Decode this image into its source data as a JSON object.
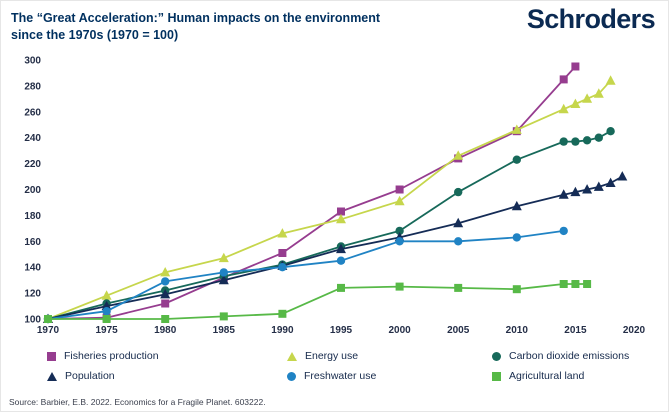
{
  "header": {
    "title_line1": "The “Great Acceleration:” Human impacts on the environment",
    "title_line2": "since the 1970s (1970 = 100)",
    "logo": "Schroders"
  },
  "colors": {
    "title_text": "#00305f",
    "axis_text": "#242e47",
    "background": "#ffffff"
  },
  "chart_data": {
    "type": "line",
    "title": "The “Great Acceleration:” Human impacts on the environment since the 1970s (1970 = 100)",
    "xlabel": "",
    "ylabel": "",
    "xlim": [
      1970,
      2020
    ],
    "ylim": [
      100,
      300
    ],
    "x_ticks": [
      1970,
      1975,
      1980,
      1985,
      1990,
      1995,
      2000,
      2005,
      2010,
      2015,
      2020
    ],
    "y_ticks": [
      100,
      120,
      140,
      160,
      180,
      200,
      220,
      240,
      260,
      280,
      300
    ],
    "grid": false,
    "legend_position": "bottom",
    "series": [
      {
        "name": "Fisheries production",
        "color": "#963d8f",
        "marker": "square",
        "x": [
          1970,
          1975,
          1980,
          1985,
          1990,
          1995,
          2000,
          2005,
          2010,
          2014,
          2015
        ],
        "y": [
          100,
          101,
          112,
          132,
          151,
          183,
          200,
          224,
          245,
          285,
          295
        ]
      },
      {
        "name": "Energy use",
        "color": "#c6d64c",
        "marker": "triangle",
        "x": [
          1970,
          1975,
          1980,
          1985,
          1990,
          1995,
          2000,
          2005,
          2010,
          2014,
          2015,
          2016,
          2017,
          2018
        ],
        "y": [
          100,
          118,
          136,
          147,
          166,
          177,
          191,
          226,
          246,
          262,
          266,
          270,
          274,
          284
        ]
      },
      {
        "name": "Carbon dioxide emissions",
        "color": "#17695a",
        "marker": "circle",
        "x": [
          1970,
          1975,
          1980,
          1985,
          1990,
          1995,
          2000,
          2005,
          2010,
          2014,
          2015,
          2016,
          2017,
          2018
        ],
        "y": [
          100,
          112,
          122,
          133,
          142,
          156,
          168,
          198,
          223,
          237,
          237,
          238,
          240,
          245
        ]
      },
      {
        "name": "Population",
        "color": "#152c56",
        "marker": "triangle",
        "x": [
          1970,
          1975,
          1980,
          1985,
          1990,
          1995,
          2000,
          2005,
          2010,
          2014,
          2015,
          2016,
          2017,
          2018,
          2019
        ],
        "y": [
          100,
          110,
          119,
          130,
          141,
          154,
          163,
          174,
          187,
          196,
          198,
          200,
          202,
          205,
          210
        ]
      },
      {
        "name": "Freshwater use",
        "color": "#2083c4",
        "marker": "circle",
        "x": [
          1970,
          1975,
          1980,
          1985,
          1990,
          1995,
          2000,
          2005,
          2010,
          2014
        ],
        "y": [
          100,
          106,
          129,
          136,
          140,
          145,
          160,
          160,
          163,
          168
        ]
      },
      {
        "name": "Agricultural land",
        "color": "#57b947",
        "marker": "square",
        "x": [
          1970,
          1975,
          1980,
          1985,
          1990,
          1995,
          2000,
          2005,
          2010,
          2014,
          2015,
          2016
        ],
        "y": [
          100,
          100,
          100,
          102,
          104,
          124,
          125,
          124,
          123,
          127,
          127,
          127
        ]
      }
    ]
  },
  "source": "Source: Barbier, E.B. 2022. Economics for a Fragile Planet. 603222."
}
